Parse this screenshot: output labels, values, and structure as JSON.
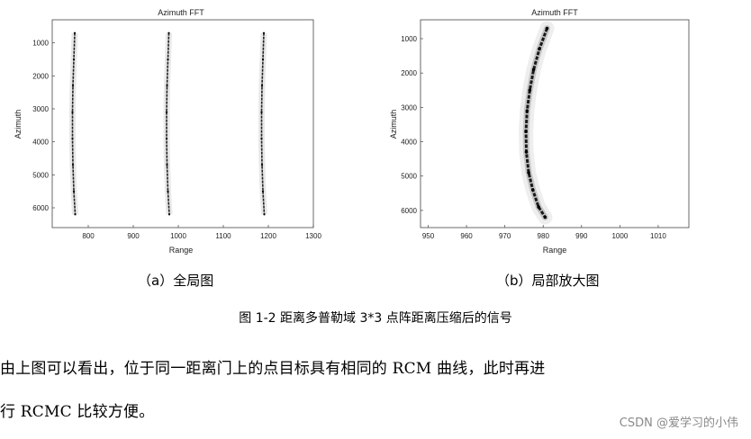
{
  "chart_data": [
    {
      "type": "scatter",
      "title": "Azimuth FFT",
      "xlabel": "Range",
      "ylabel": "Azimuth",
      "xlim": [
        720,
        1300
      ],
      "ylim": [
        6600,
        300
      ],
      "xticks": [
        "800",
        "900",
        "1000",
        "1100",
        "1200",
        "1300"
      ],
      "yticks": [
        "1000",
        "2000",
        "3000",
        "4000",
        "5000",
        "6000"
      ],
      "grid": false,
      "series": [
        {
          "x": [
            770,
            768,
            766,
            765,
            765,
            766,
            768,
            771
          ],
          "y": [
            700,
            1500,
            2300,
            3100,
            3900,
            4700,
            5500,
            6200
          ]
        },
        {
          "x": [
            979,
            977,
            975,
            974,
            974,
            975,
            977,
            980
          ],
          "y": [
            700,
            1500,
            2300,
            3100,
            3900,
            4700,
            5500,
            6200
          ]
        },
        {
          "x": [
            1190,
            1188,
            1186,
            1185,
            1185,
            1186,
            1188,
            1191
          ],
          "y": [
            700,
            1500,
            2300,
            3100,
            3900,
            4700,
            5500,
            6200
          ]
        }
      ]
    },
    {
      "type": "scatter",
      "title": "Azimuth FFT",
      "xlabel": "Range",
      "ylabel": "Azimuth",
      "xlim": [
        948,
        1018
      ],
      "ylim": [
        6500,
        450
      ],
      "xticks": [
        "950",
        "960",
        "970",
        "980",
        "990",
        "1000",
        "1010"
      ],
      "yticks": [
        "1000",
        "2000",
        "3000",
        "4000",
        "5000",
        "6000"
      ],
      "grid": false,
      "series": [
        {
          "x": [
            981,
            979,
            977.5,
            976.5,
            975.8,
            975.5,
            975.6,
            976.2,
            977.3,
            978.8,
            980.5
          ],
          "y": [
            700,
            1300,
            1900,
            2500,
            3100,
            3700,
            4300,
            4900,
            5400,
            5900,
            6200
          ]
        }
      ]
    }
  ],
  "captions": {
    "sub_a": "（a）全局图",
    "sub_b": "（b）局部放大图",
    "figure": "图 1-2 距离多普勒域 3*3 点阵距离压缩后的信号"
  },
  "paragraph": {
    "line1": "由上图可以看出，位于同一距离门上的点目标具有相同的 RCM 曲线，此时再进",
    "line2": "行 RCMC 比较方便。"
  },
  "watermark": "CSDN @爱学习的小伟"
}
